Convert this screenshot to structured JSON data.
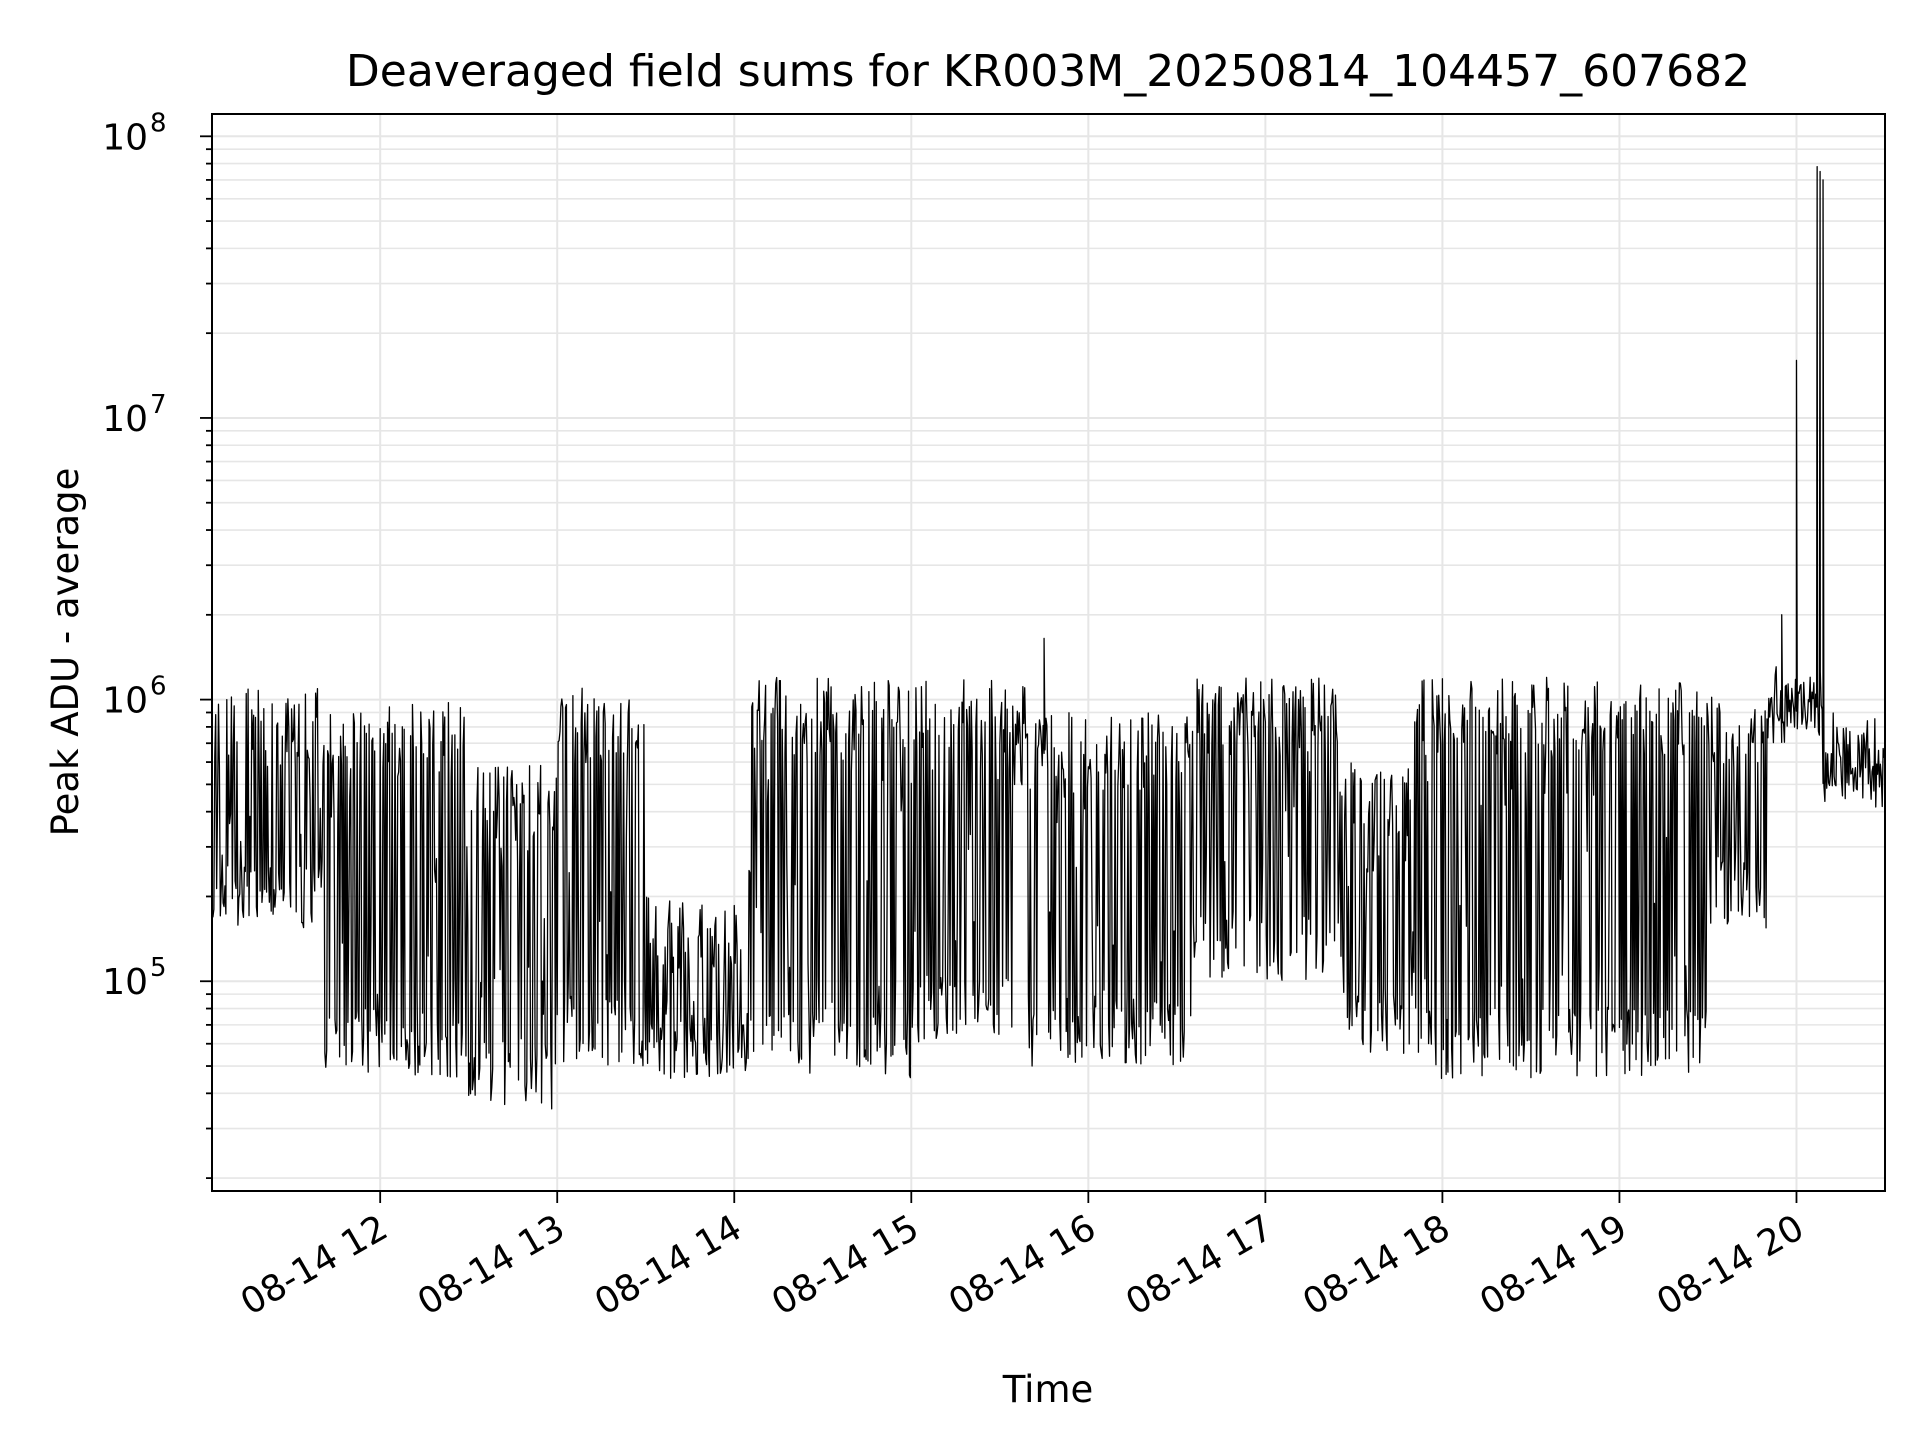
{
  "chart_data": {
    "type": "line",
    "title": "Deaveraged field sums for KR003M_20250814_104457_607682",
    "xlabel": "Time",
    "ylabel": "Peak ADU - average",
    "yscale": "log",
    "ylim": [
      18000,
      120000000
    ],
    "xlim": [
      "2025-08-14T11:03",
      "2025-08-14T20:30"
    ],
    "grid": true,
    "x_tick_labels": [
      "08-14 12",
      "08-14 13",
      "08-14 14",
      "08-14 15",
      "08-14 16",
      "08-14 17",
      "08-14 18",
      "08-14 19",
      "08-14 20"
    ],
    "y_tick_labels": [
      {
        "base": "10",
        "exp": "5"
      },
      {
        "base": "10",
        "exp": "6"
      },
      {
        "base": "10",
        "exp": "7"
      },
      {
        "base": "10",
        "exp": "8"
      }
    ],
    "series_color": "#000000",
    "segments": [
      {
        "start": "2025-08-14T11:03",
        "end": "2025-08-14T11:40",
        "low": 150000,
        "high": 1100000
      },
      {
        "start": "2025-08-14T11:40",
        "end": "2025-08-14T12:30",
        "low": 45000,
        "high": 1000000
      },
      {
        "start": "2025-08-14T12:30",
        "end": "2025-08-14T13:00",
        "low": 35000,
        "high": 600000
      },
      {
        "start": "2025-08-14T13:00",
        "end": "2025-08-14T13:30",
        "low": 50000,
        "high": 1100000
      },
      {
        "start": "2025-08-14T13:30",
        "end": "2025-08-14T14:05",
        "low": 45000,
        "high": 200000
      },
      {
        "start": "2025-08-14T14:05",
        "end": "2025-08-14T15:00",
        "low": 45000,
        "high": 1200000
      },
      {
        "start": "2025-08-14T15:00",
        "end": "2025-08-14T15:40",
        "low": 60000,
        "high": 1200000
      },
      {
        "start": "2025-08-14T15:40",
        "end": "2025-08-14T16:35",
        "low": 50000,
        "high": 900000
      },
      {
        "start": "2025-08-14T16:35",
        "end": "2025-08-14T17:25",
        "low": 100000,
        "high": 1200000
      },
      {
        "start": "2025-08-14T17:25",
        "end": "2025-08-14T17:50",
        "low": 55000,
        "high": 600000
      },
      {
        "start": "2025-08-14T17:50",
        "end": "2025-08-14T19:30",
        "low": 45000,
        "high": 1200000
      },
      {
        "start": "2025-08-14T19:30",
        "end": "2025-08-14T19:50",
        "low": 150000,
        "high": 1100000
      },
      {
        "start": "2025-08-14T19:50",
        "end": "2025-08-14T20:09",
        "low": 700000,
        "high": 1400000
      },
      {
        "start": "2025-08-14T20:09",
        "end": "2025-08-14T20:30",
        "low": 400000,
        "high": 900000
      }
    ],
    "spikes": [
      {
        "time": "2025-08-14T15:45",
        "value": 1650000
      },
      {
        "time": "2025-08-14T19:55",
        "value": 2000000
      },
      {
        "time": "2025-08-14T20:00",
        "value": 16000000
      },
      {
        "time": "2025-08-14T20:07",
        "value": 78000000
      },
      {
        "time": "2025-08-14T20:08",
        "value": 75000000
      },
      {
        "time": "2025-08-14T20:09",
        "value": 70000000
      }
    ]
  }
}
